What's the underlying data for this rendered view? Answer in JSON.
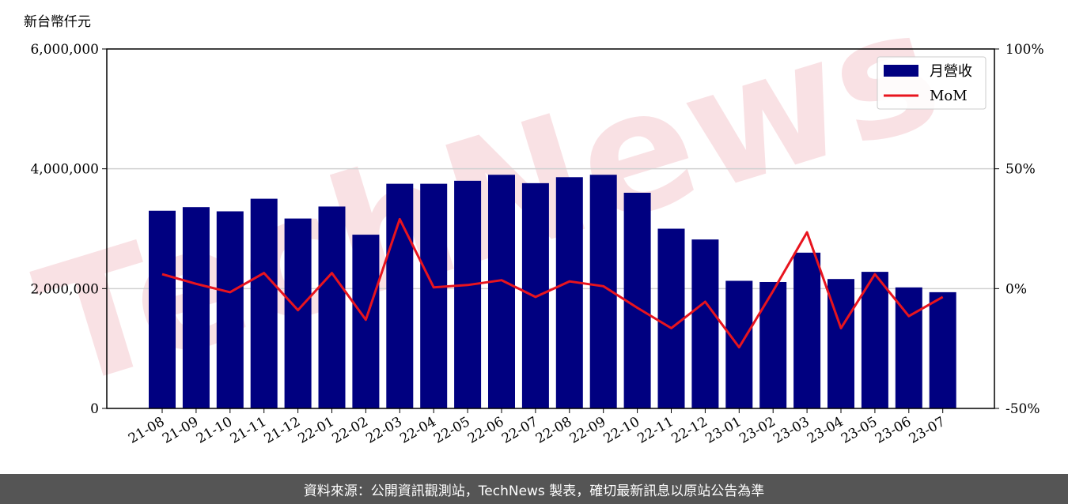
{
  "chart_data": {
    "type": "bar",
    "y_unit": "新台幣仟元",
    "categories": [
      "21-08",
      "21-09",
      "21-10",
      "21-11",
      "21-12",
      "22-01",
      "22-02",
      "22-03",
      "22-04",
      "22-05",
      "22-06",
      "22-07",
      "22-08",
      "22-09",
      "22-10",
      "22-11",
      "22-12",
      "23-01",
      "23-02",
      "23-03",
      "23-04",
      "23-05",
      "23-06",
      "23-07"
    ],
    "series": [
      {
        "name": "月營收",
        "type": "bar",
        "axis": "left",
        "color": "#000080",
        "values": [
          3300000,
          3360000,
          3290000,
          3500000,
          3170000,
          3370000,
          2900000,
          3750000,
          3750000,
          3800000,
          3900000,
          3760000,
          3860000,
          3900000,
          3600000,
          3000000,
          2820000,
          2130000,
          2110000,
          2600000,
          2160000,
          2280000,
          2020000,
          1940000
        ]
      },
      {
        "name": "MoM",
        "type": "line",
        "axis": "right",
        "color": "#e8141e",
        "values": [
          6.0,
          2.0,
          -1.5,
          6.5,
          -9.0,
          6.5,
          -13.0,
          29.0,
          0.5,
          1.5,
          3.5,
          -3.5,
          3.0,
          1.0,
          -8.0,
          -16.5,
          -5.5,
          -24.5,
          -1.0,
          23.5,
          -16.5,
          6.0,
          -11.5,
          -3.5
        ]
      }
    ],
    "ylim": [
      0,
      6000000
    ],
    "y_ticks": [
      "0",
      "2,000,000",
      "4,000,000",
      "6,000,000"
    ],
    "y2lim": [
      -50,
      100
    ],
    "y2_ticks": [
      "-50%",
      "0%",
      "50%",
      "100%"
    ],
    "grid": "horizontal",
    "legend": "top-right"
  },
  "watermark": "TechNews",
  "footer": "資料來源：公開資訊觀測站，TechNews 製表，確切最新訊息以原站公告為準"
}
